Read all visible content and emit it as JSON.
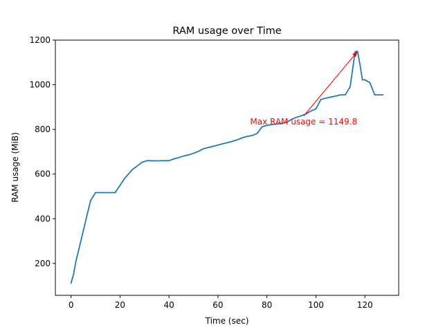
{
  "chart_data": {
    "type": "line",
    "title": "RAM usage over Time",
    "xlabel": "Time (sec)",
    "ylabel": "RAM usage (MiB)",
    "xlim": [
      -6.4,
      133.8
    ],
    "ylim": [
      57,
      1200
    ],
    "xticks": [
      0,
      20,
      40,
      60,
      80,
      100,
      120
    ],
    "yticks": [
      200,
      400,
      600,
      800,
      1000,
      1200
    ],
    "grid": false,
    "line_color": "#1f77b4",
    "series": [
      {
        "x": [
          0,
          1,
          2,
          4,
          6,
          8,
          10,
          12,
          14,
          16,
          18,
          20,
          22,
          25,
          27,
          29,
          31,
          33,
          35,
          37,
          40,
          42,
          44,
          46,
          48,
          50,
          52,
          54,
          56,
          58,
          60,
          62,
          64,
          66,
          68,
          70,
          72,
          74,
          76,
          78,
          80,
          82,
          84,
          86,
          88,
          90,
          92,
          94,
          96,
          98,
          100,
          102,
          104,
          106,
          108,
          110,
          112,
          114,
          116,
          117,
          118,
          119,
          120,
          121,
          122,
          124,
          126,
          127.3
        ],
        "y": [
          112,
          150,
          210,
          300,
          392,
          482,
          517,
          517,
          517,
          517,
          517,
          550,
          582,
          620,
          636,
          653,
          660,
          660,
          659,
          660,
          660,
          668,
          674,
          681,
          686,
          693,
          702,
          713,
          719,
          724,
          730,
          736,
          741,
          747,
          754,
          763,
          769,
          773,
          782,
          812,
          818,
          822,
          824,
          827,
          831,
          845,
          854,
          861,
          870,
          883,
          892,
          934,
          940,
          945,
          949,
          955,
          955,
          992,
          1148,
          1149.8,
          1090,
          1022,
          1022,
          1016,
          1010,
          955,
          955,
          955
        ]
      }
    ],
    "annotation": {
      "text": "Max RAM usage = 1149.8",
      "color": "#ff0000",
      "point": [
        117,
        1149.8
      ],
      "text_position": [
        95,
        860
      ]
    }
  }
}
